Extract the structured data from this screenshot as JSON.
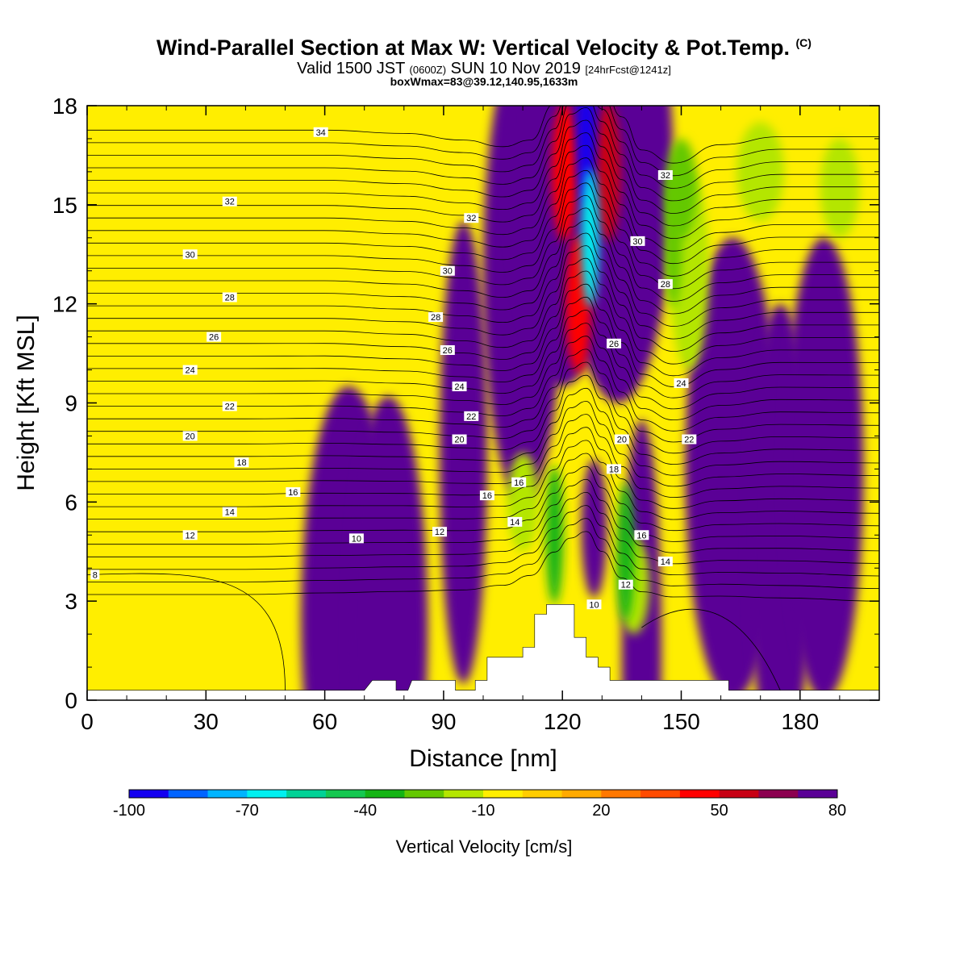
{
  "title": {
    "main": "Wind-Parallel Section at Max W: Vertical Velocity & Pot.Temp.",
    "copyright": "(C)",
    "valid_prefix": "Valid 1500 JST",
    "valid_utc": "(0600Z)",
    "valid_date": "SUN 10 Nov 2019",
    "forecast": "[24hrFcst@1241z]",
    "box_wmax": "boxWmax=83@39.12,140.95,1633m"
  },
  "colors": {
    "background_field": "#ffee00",
    "terrain": "#ffffff"
  },
  "chart_data": {
    "type": "heatmap",
    "xlabel": "Distance [nm]",
    "ylabel": "Height [Kft MSL]",
    "xlim": [
      0,
      200
    ],
    "ylim": [
      0,
      18
    ],
    "x_ticks": [
      0,
      30,
      60,
      90,
      120,
      150,
      180
    ],
    "y_ticks": [
      0,
      3,
      6,
      9,
      12,
      15,
      18
    ],
    "colorbar": {
      "label": "Vertical Velocity [cm/s]",
      "tick_labels": [
        "-100",
        "-70",
        "-40",
        "-10",
        "20",
        "50",
        "80"
      ],
      "levels": [
        -100,
        -90,
        -80,
        -70,
        -60,
        -50,
        -40,
        -30,
        -20,
        -10,
        0,
        10,
        20,
        30,
        40,
        50,
        60,
        70,
        80
      ],
      "colors": [
        "#1400f0",
        "#0064ff",
        "#00b4ff",
        "#00f0f0",
        "#00d296",
        "#14c850",
        "#14b414",
        "#64c800",
        "#b4e600",
        "#ffee00",
        "#ffcd00",
        "#ffaa00",
        "#ff7800",
        "#ff4b00",
        "#ff0000",
        "#c80014",
        "#8c0050",
        "#5a0096"
      ]
    },
    "terrain_profile_kft": [
      [
        0,
        0.3
      ],
      [
        70,
        0.3
      ],
      [
        72,
        0.6
      ],
      [
        78,
        0.6
      ],
      [
        78,
        0.3
      ],
      [
        81,
        0.3
      ],
      [
        82,
        0.6
      ],
      [
        93,
        0.6
      ],
      [
        93,
        0.3
      ],
      [
        98,
        0.3
      ],
      [
        98,
        0.6
      ],
      [
        101,
        0.6
      ],
      [
        101,
        1.3
      ],
      [
        110,
        1.3
      ],
      [
        110,
        1.6
      ],
      [
        113,
        1.6
      ],
      [
        113,
        2.6
      ],
      [
        116,
        2.6
      ],
      [
        116,
        2.9
      ],
      [
        123,
        2.9
      ],
      [
        123,
        1.9
      ],
      [
        126,
        1.9
      ],
      [
        126,
        1.3
      ],
      [
        129,
        1.3
      ],
      [
        129,
        1.0
      ],
      [
        132,
        1.0
      ],
      [
        132,
        0.6
      ],
      [
        162,
        0.6
      ],
      [
        162,
        0.3
      ],
      [
        200,
        0.3
      ]
    ],
    "updraft_core": [
      {
        "x": 124,
        "y": 12,
        "w": 45
      },
      {
        "x": 128,
        "y": 5.2,
        "w": 70
      },
      {
        "x": 120.5,
        "y": 16,
        "w": 45
      },
      {
        "x": 131.5,
        "y": 16,
        "w": 55
      }
    ],
    "downdraft_core": [
      {
        "x": 126,
        "y": 17,
        "w": -95
      },
      {
        "x": 127,
        "y": 14,
        "w": -65
      },
      {
        "x": 118,
        "y": 5,
        "w": -40
      },
      {
        "x": 136,
        "y": 4.5,
        "w": -40
      },
      {
        "x": 148,
        "y": 14,
        "w": -30
      }
    ],
    "theta_labels": [
      {
        "x": 2,
        "y": 3.8,
        "text": "8"
      },
      {
        "x": 26,
        "y": 5.0,
        "text": "12"
      },
      {
        "x": 68,
        "y": 4.9,
        "text": "10"
      },
      {
        "x": 89,
        "y": 5.1,
        "text": "12"
      },
      {
        "x": 36,
        "y": 5.7,
        "text": "14"
      },
      {
        "x": 52,
        "y": 6.3,
        "text": "16"
      },
      {
        "x": 101,
        "y": 6.2,
        "text": "16"
      },
      {
        "x": 109,
        "y": 6.6,
        "text": "16"
      },
      {
        "x": 108,
        "y": 5.4,
        "text": "14"
      },
      {
        "x": 39,
        "y": 7.2,
        "text": "18"
      },
      {
        "x": 26,
        "y": 8.0,
        "text": "20"
      },
      {
        "x": 94,
        "y": 7.9,
        "text": "20"
      },
      {
        "x": 36,
        "y": 8.9,
        "text": "22"
      },
      {
        "x": 97,
        "y": 8.6,
        "text": "22"
      },
      {
        "x": 26,
        "y": 10.0,
        "text": "24"
      },
      {
        "x": 94,
        "y": 9.5,
        "text": "24"
      },
      {
        "x": 32,
        "y": 11.0,
        "text": "26"
      },
      {
        "x": 91,
        "y": 10.6,
        "text": "26"
      },
      {
        "x": 36,
        "y": 12.2,
        "text": "28"
      },
      {
        "x": 88,
        "y": 11.6,
        "text": "28"
      },
      {
        "x": 26,
        "y": 13.5,
        "text": "30"
      },
      {
        "x": 91,
        "y": 13.0,
        "text": "30"
      },
      {
        "x": 36,
        "y": 15.1,
        "text": "32"
      },
      {
        "x": 97,
        "y": 14.6,
        "text": "32"
      },
      {
        "x": 59,
        "y": 17.2,
        "text": "34"
      },
      {
        "x": 135,
        "y": 7.9,
        "text": "20"
      },
      {
        "x": 133,
        "y": 7.0,
        "text": "18"
      },
      {
        "x": 140,
        "y": 5.0,
        "text": "16"
      },
      {
        "x": 146,
        "y": 4.2,
        "text": "14"
      },
      {
        "x": 136,
        "y": 3.5,
        "text": "12"
      },
      {
        "x": 128,
        "y": 2.9,
        "text": "10"
      },
      {
        "x": 152,
        "y": 7.9,
        "text": "22"
      },
      {
        "x": 150,
        "y": 9.6,
        "text": "24"
      },
      {
        "x": 133,
        "y": 10.8,
        "text": "26"
      },
      {
        "x": 146,
        "y": 12.6,
        "text": "28"
      },
      {
        "x": 139,
        "y": 13.9,
        "text": "30"
      },
      {
        "x": 146,
        "y": 15.9,
        "text": "32"
      }
    ]
  }
}
